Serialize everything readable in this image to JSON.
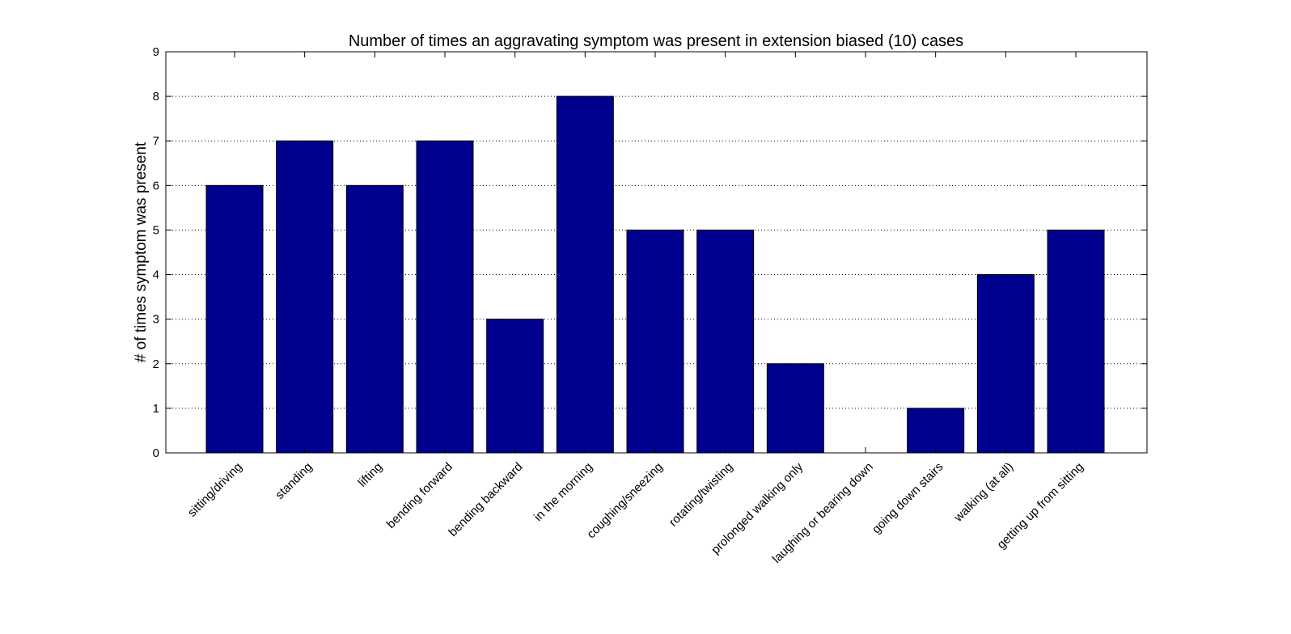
{
  "chart_data": {
    "type": "bar",
    "title": "Number of times an aggravating symptom was present in extension biased (10) cases",
    "xlabel": "",
    "ylabel": "# of times symptom was present",
    "categories": [
      "sitting/driving",
      "standing",
      "lifting",
      "bending forward",
      "bending backward",
      "in the morning",
      "coughing/sneezing",
      "rotating/twisting",
      "prolonged walking only",
      "laughing or bearing down",
      "going down stairs",
      "walking (at all)",
      "getting up from sitting"
    ],
    "values": [
      6,
      7,
      6,
      7,
      3,
      8,
      5,
      5,
      2,
      0,
      1,
      4,
      5
    ],
    "ylim": [
      0,
      9
    ],
    "yticks": [
      "0",
      "1",
      "2",
      "3",
      "4",
      "5",
      "6",
      "7",
      "8",
      "9"
    ],
    "grid": "y-dotted",
    "bar_color": "#00008f"
  }
}
